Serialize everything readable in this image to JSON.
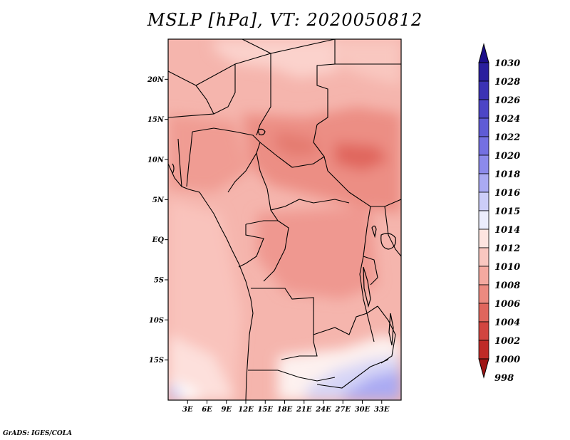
{
  "title": "MSLP [hPa], VT: 2020050812",
  "footer": "GrADS: IGES/COLA",
  "map": {
    "lon_range": [
      0,
      36
    ],
    "lat_range": [
      -20,
      25
    ],
    "lat_labels": [
      "20N",
      "15N",
      "10N",
      "5N",
      "EQ",
      "5S",
      "10S",
      "15S"
    ],
    "lat_values": [
      20,
      15,
      10,
      5,
      0,
      -5,
      -10,
      -15
    ],
    "lon_labels": [
      "3E",
      "6E",
      "9E",
      "12E",
      "15E",
      "18E",
      "21E",
      "24E",
      "27E",
      "30E",
      "33E"
    ],
    "lon_values": [
      3,
      6,
      9,
      12,
      15,
      18,
      21,
      24,
      27,
      30,
      33
    ]
  },
  "colorbar": {
    "levels": [
      "1030",
      "1028",
      "1026",
      "1024",
      "1022",
      "1020",
      "1018",
      "1016",
      "1015",
      "1014",
      "1012",
      "1010",
      "1008",
      "1006",
      "1004",
      "1002",
      "1000",
      "998"
    ],
    "colors": [
      "#1c0f8a",
      "#2a1f9e",
      "#3b32b4",
      "#4c45c6",
      "#5f5bd6",
      "#7470e2",
      "#8c8aeb",
      "#aaaaf3",
      "#cccdf8",
      "#ecedfc",
      "#fde4e0",
      "#f9c7c0",
      "#f4a9a0",
      "#ec8a80",
      "#e0665d",
      "#d24540",
      "#bf2a27",
      "#9e1515"
    ]
  }
}
